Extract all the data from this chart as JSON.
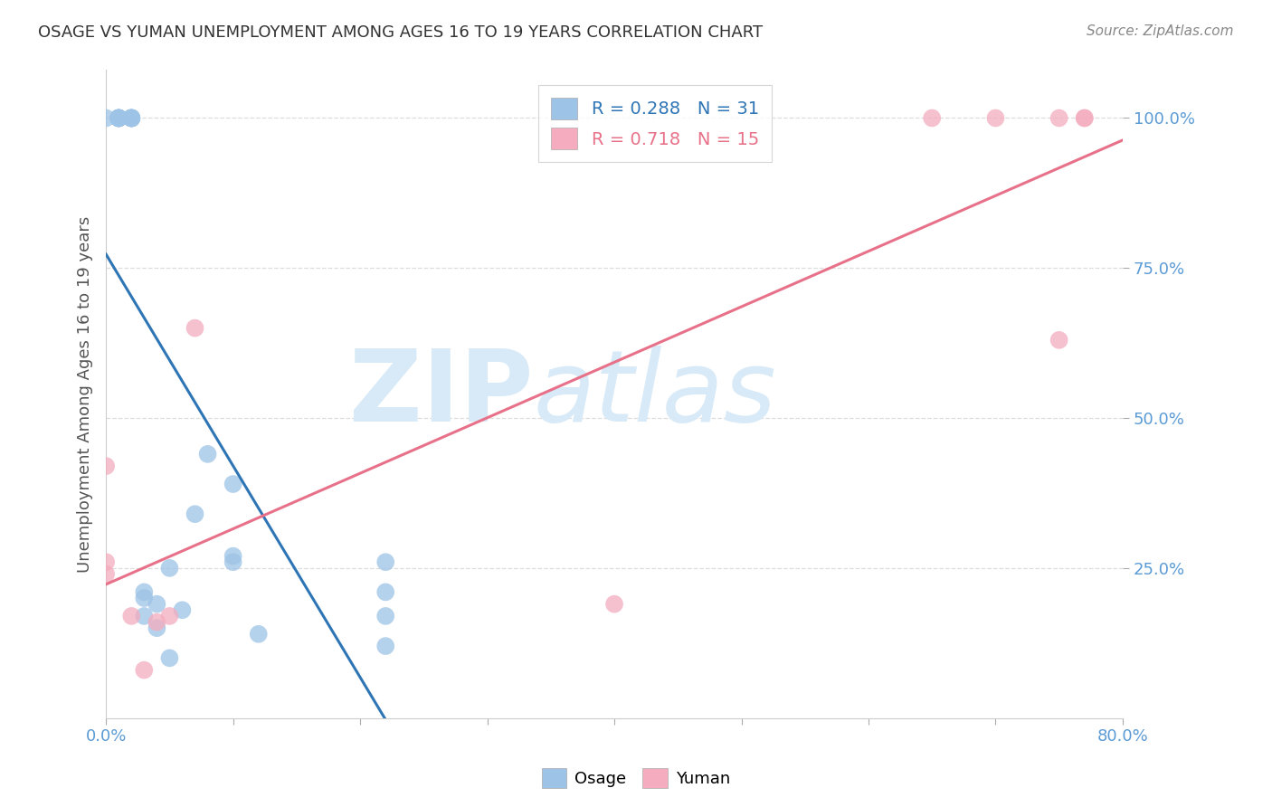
{
  "title": "OSAGE VS YUMAN UNEMPLOYMENT AMONG AGES 16 TO 19 YEARS CORRELATION CHART",
  "source": "Source: ZipAtlas.com",
  "ylabel": "Unemployment Among Ages 16 to 19 years",
  "xlabel": "",
  "xlim": [
    0.0,
    0.8
  ],
  "ylim": [
    0.0,
    1.08
  ],
  "xticks": [
    0.0,
    0.1,
    0.2,
    0.3,
    0.4,
    0.5,
    0.6,
    0.7,
    0.8
  ],
  "xticklabels": [
    "0.0%",
    "",
    "",
    "",
    "",
    "",
    "",
    "",
    "80.0%"
  ],
  "ytick_positions": [
    0.25,
    0.5,
    0.75,
    1.0
  ],
  "yticklabels": [
    "25.0%",
    "50.0%",
    "75.0%",
    "100.0%"
  ],
  "osage_R": 0.288,
  "osage_N": 31,
  "yuman_R": 0.718,
  "yuman_N": 15,
  "osage_color": "#9DC3E6",
  "yuman_color": "#F4ACBE",
  "osage_line_color": "#2E75B6",
  "yuman_line_color": "#E8718A",
  "watermark_zip": "ZIP",
  "watermark_atlas": "atlas",
  "watermark_color": "#D8EAF7",
  "osage_x": [
    0.0,
    0.01,
    0.01,
    0.01,
    0.01,
    0.01,
    0.01,
    0.02,
    0.02,
    0.02,
    0.02,
    0.02,
    0.02,
    0.03,
    0.03,
    0.03,
    0.04,
    0.04,
    0.05,
    0.05,
    0.06,
    0.07,
    0.08,
    0.1,
    0.1,
    0.1,
    0.12,
    0.22,
    0.22,
    0.22,
    0.22
  ],
  "osage_y": [
    1.0,
    1.0,
    1.0,
    1.0,
    1.0,
    1.0,
    1.0,
    1.0,
    1.0,
    1.0,
    1.0,
    1.0,
    1.0,
    0.17,
    0.21,
    0.2,
    0.15,
    0.19,
    0.1,
    0.25,
    0.18,
    0.34,
    0.44,
    0.27,
    0.26,
    0.39,
    0.14,
    0.21,
    0.17,
    0.12,
    0.26
  ],
  "yuman_x": [
    0.0,
    0.0,
    0.0,
    0.02,
    0.03,
    0.04,
    0.05,
    0.07,
    0.4,
    0.65,
    0.7,
    0.75,
    0.75,
    0.77,
    0.77
  ],
  "yuman_y": [
    0.24,
    0.26,
    0.42,
    0.17,
    0.08,
    0.16,
    0.17,
    0.65,
    0.19,
    1.0,
    1.0,
    0.63,
    1.0,
    1.0,
    1.0
  ],
  "background_color": "#FFFFFF",
  "grid_color": "#DDDDDD",
  "title_color": "#333333",
  "axis_label_color": "#555555",
  "tick_label_color": "#5B9BD5"
}
